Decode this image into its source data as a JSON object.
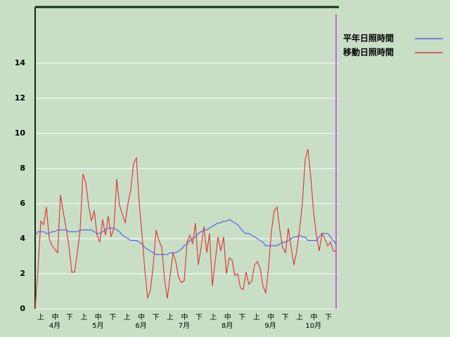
{
  "chart_data": {
    "type": "line",
    "dekad_labels": [
      "上",
      "中",
      "下",
      "上",
      "中",
      "下",
      "上",
      "中",
      "下",
      "上",
      "中",
      "下",
      "上",
      "中",
      "下",
      "上",
      "中",
      "下",
      "上",
      "中",
      "下"
    ],
    "month_labels": [
      "4月",
      "5月",
      "6月",
      "7月",
      "8月",
      "9月",
      "10月"
    ],
    "ylim": [
      0,
      17.2
    ],
    "yticks": [
      0,
      2,
      4,
      6,
      8,
      10,
      12,
      14
    ],
    "grid": true,
    "legend": "top-right",
    "series": [
      {
        "name": "平年日照時間",
        "color": "#5a64e6",
        "values": [
          4.2,
          4.4,
          4.4,
          4.4,
          4.3,
          4.3,
          4.4,
          4.4,
          4.5,
          4.5,
          4.5,
          4.5,
          4.4,
          4.4,
          4.4,
          4.4,
          4.5,
          4.5,
          4.5,
          4.5,
          4.5,
          4.4,
          4.3,
          4.3,
          4.4,
          4.5,
          4.6,
          4.6,
          4.6,
          4.5,
          4.4,
          4.2,
          4.1,
          4.0,
          3.9,
          3.9,
          3.9,
          3.8,
          3.7,
          3.5,
          3.4,
          3.3,
          3.2,
          3.1,
          3.1,
          3.1,
          3.1,
          3.1,
          3.2,
          3.2,
          3.2,
          3.3,
          3.4,
          3.6,
          3.7,
          3.9,
          4.0,
          4.1,
          4.3,
          4.4,
          4.5,
          4.5,
          4.6,
          4.7,
          4.8,
          4.9,
          4.9,
          5.0,
          5.0,
          5.1,
          5.0,
          4.9,
          4.8,
          4.6,
          4.4,
          4.3,
          4.3,
          4.2,
          4.1,
          4.0,
          3.9,
          3.8,
          3.6,
          3.6,
          3.6,
          3.6,
          3.6,
          3.7,
          3.8,
          3.8,
          3.9,
          4.0,
          4.1,
          4.1,
          4.2,
          4.1,
          4.1,
          3.9,
          3.9,
          3.9,
          3.9,
          4.1,
          4.3,
          4.3,
          4.3,
          4.1,
          3.9,
          3.7
        ]
      },
      {
        "name": "移動日照時間",
        "color": "#e03c3c",
        "values": [
          0,
          2.2,
          5.0,
          4.8,
          5.8,
          4.0,
          3.6,
          3.4,
          3.2,
          6.5,
          5.5,
          4.6,
          3.6,
          2.1,
          2.1,
          3.2,
          4.5,
          7.7,
          7.2,
          5.9,
          5.0,
          5.6,
          4.2,
          3.8,
          5.1,
          4.2,
          5.3,
          4.1,
          4.6,
          7.4,
          5.9,
          5.4,
          4.9,
          6.0,
          6.8,
          8.3,
          8.6,
          6.0,
          4.2,
          2.2,
          0.6,
          1.1,
          2.5,
          4.5,
          3.9,
          3.5,
          1.7,
          0.6,
          1.9,
          3.2,
          2.7,
          1.8,
          1.5,
          1.6,
          3.8,
          4.2,
          3.7,
          4.9,
          2.5,
          3.5,
          4.7,
          3.2,
          4.3,
          1.3,
          2.7,
          4.1,
          3.3,
          4.1,
          2.0,
          2.9,
          2.8,
          1.9,
          2.0,
          1.2,
          1.1,
          2.1,
          1.4,
          1.6,
          2.5,
          2.7,
          2.3,
          1.3,
          0.9,
          2.4,
          4.4,
          5.6,
          5.8,
          4.5,
          3.5,
          3.2,
          4.6,
          3.5,
          2.5,
          3.3,
          4.5,
          6.0,
          8.5,
          9.1,
          7.5,
          5.5,
          4.2,
          3.3,
          4.3,
          4.0,
          3.6,
          3.8,
          3.3,
          3.3
        ]
      }
    ]
  }
}
